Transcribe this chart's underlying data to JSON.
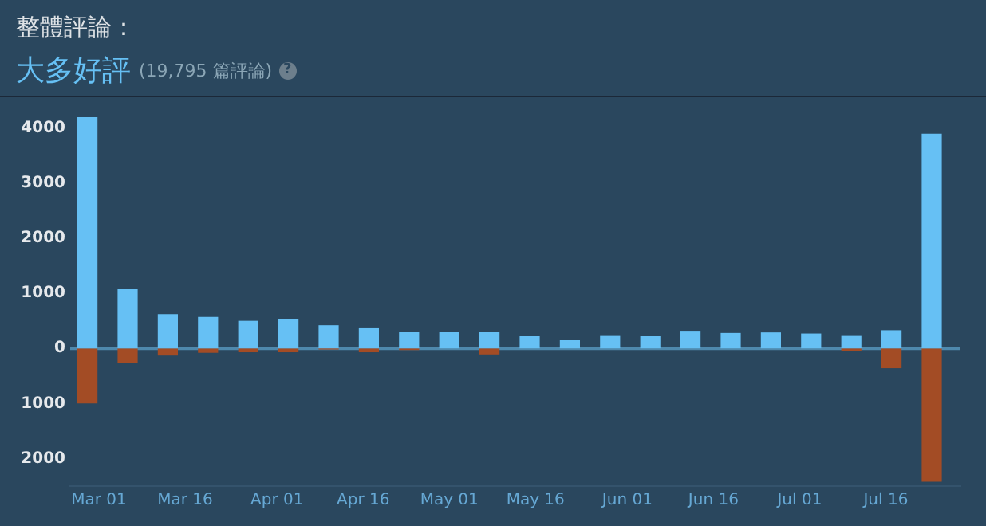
{
  "chart_data": {
    "type": "bar",
    "title": "整體評論：",
    "subtitle": "大多好評",
    "annotations": [
      "(19,795 篇評論)",
      "?"
    ],
    "x": [
      "--02-27",
      "--03-06",
      "--03-13",
      "--03-20",
      "--03-27",
      "--04-03",
      "--04-10",
      "--04-17",
      "--04-24",
      "--05-01",
      "--05-08",
      "--05-15",
      "--05-22",
      "--05-29",
      "--06-05",
      "--06-12",
      "--06-19",
      "--06-26",
      "--07-03",
      "--07-10",
      "--07-17",
      "--07-24"
    ],
    "stacked": true,
    "series": [
      {
        "color": "#66c0f4",
        "values": [
          4200,
          1080,
          620,
          570,
          500,
          540,
          420,
          380,
          300,
          300,
          300,
          220,
          160,
          240,
          230,
          320,
          280,
          290,
          270,
          240,
          330,
          3900
        ]
      },
      {
        "color": "#a34c25",
        "values": [
          -1000,
          -260,
          -130,
          -80,
          -70,
          -70,
          -20,
          -70,
          -30,
          null,
          -110,
          null,
          null,
          null,
          null,
          null,
          null,
          null,
          null,
          -50,
          -360,
          -2420
        ]
      }
    ],
    "xlim": [
      "--02-24",
      "--07-29"
    ],
    "xticks": [
      {
        "value": "--03-01",
        "label": "Mar 01"
      },
      {
        "value": "--03-16",
        "label": "Mar 16"
      },
      {
        "value": "--04-01",
        "label": "Apr 01"
      },
      {
        "value": "--04-16",
        "label": "Apr 16"
      },
      {
        "value": "--05-01",
        "label": "May 01"
      },
      {
        "value": "--05-16",
        "label": "May 16"
      },
      {
        "value": "--06-01",
        "label": "Jun 01"
      },
      {
        "value": "--06-16",
        "label": "Jun 16"
      },
      {
        "value": "--07-01",
        "label": "Jul 01"
      },
      {
        "value": "--07-16",
        "label": "Jul 16"
      }
    ],
    "ylim": [
      -2500,
      4300
    ],
    "yticks": [
      {
        "value": -2000,
        "label": "2000"
      },
      {
        "value": -1000,
        "label": "1000"
      },
      0,
      1000,
      2000,
      3000,
      4000
    ],
    "ref_lines": [
      {
        "axis": "y",
        "value": 0,
        "color": "#4f89ad"
      }
    ],
    "grid": false,
    "legend": false
  }
}
